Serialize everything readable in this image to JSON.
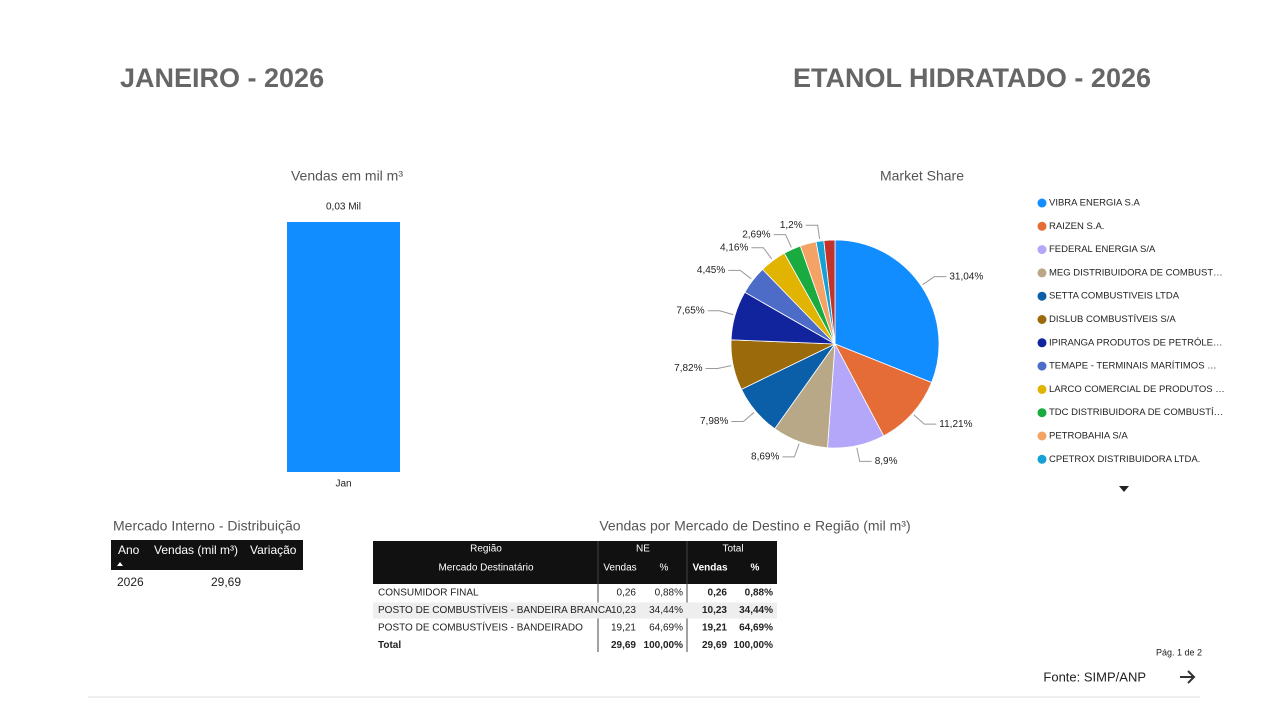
{
  "header": {
    "left_title": "JANEIRO - 2026",
    "right_title": "ETANOL HIDRATADO -  2026"
  },
  "chart_data": [
    {
      "type": "bar",
      "title": "Vendas  em mil m³",
      "categories": [
        "Jan"
      ],
      "values": [
        0.03
      ],
      "value_labels": [
        "0,03 Mil"
      ],
      "color": "#118dff"
    },
    {
      "type": "pie",
      "title": "Market Share",
      "categories": [
        "VIBRA ENERGIA S.A",
        "RAIZEN S.A.",
        "FEDERAL ENERGIA S/A",
        "MEG DISTRIBUIDORA DE COMBUST…",
        "SETTA COMBUSTIVEIS LTDA",
        "DISLUB COMBUSTÍVEIS S/A",
        "IPIRANGA PRODUTOS DE PETRÓLE…",
        "TEMAPE - TERMINAIS MARÍTIMOS …",
        "LARCO COMERCIAL DE PRODUTOS …",
        "TDC DISTRIBUIDORA DE COMBUSTÍ…",
        "PETROBAHIA S/A",
        "CPETROX DISTRIBUIDORA LTDA.",
        null
      ],
      "values": [
        31.04,
        11.21,
        8.9,
        8.69,
        7.98,
        7.82,
        7.65,
        4.45,
        4.16,
        2.69,
        2.5,
        1.2,
        1.71
      ],
      "value_labels": [
        "31,04%",
        "11,21%",
        "8,9%",
        "8,69%",
        "7,98%",
        "7,82%",
        "7,65%",
        "4,45%",
        "4,16%",
        "2,69%",
        null,
        "1,2%",
        null
      ],
      "colors": [
        "#118dff",
        "#e66c37",
        "#b4a7fa",
        "#b8a888",
        "#0b5ea8",
        "#9b6a0a",
        "#12239e",
        "#4c6cc8",
        "#e0b400",
        "#1aab40",
        "#f4a266",
        "#15a1d6",
        "#c2332b"
      ]
    }
  ],
  "summary_table": {
    "title": "Mercado Interno - Distribuição",
    "columns": [
      "Ano",
      "Vendas (mil m³)",
      "Variação"
    ],
    "rows": [
      [
        "2026",
        "29,69"
      ]
    ]
  },
  "region_table": {
    "title": "Vendas por Mercado de Destino e Região (mil m³)",
    "header_top": [
      "Região",
      "NE",
      "Total"
    ],
    "columns": [
      "Mercado Destinatário",
      "Vendas",
      "%",
      "Vendas",
      "%"
    ],
    "rows": [
      [
        "CONSUMIDOR FINAL",
        "0,26",
        "0,88%",
        "0,26",
        "0,88%"
      ],
      [
        "POSTO DE COMBUSTÍVEIS - BANDEIRA BRANCA",
        "10,23",
        "34,44%",
        "10,23",
        "34,44%"
      ],
      [
        "POSTO DE COMBUSTÍVEIS - BANDEIRADO",
        "19,21",
        "64,69%",
        "19,21",
        "64,69%"
      ],
      [
        "Total",
        "29,69",
        "100,00%",
        "29,69",
        "100,00%"
      ]
    ]
  },
  "footer": {
    "page": "Pág. 1 de 2",
    "source": "Fonte: SIMP/ANP"
  }
}
